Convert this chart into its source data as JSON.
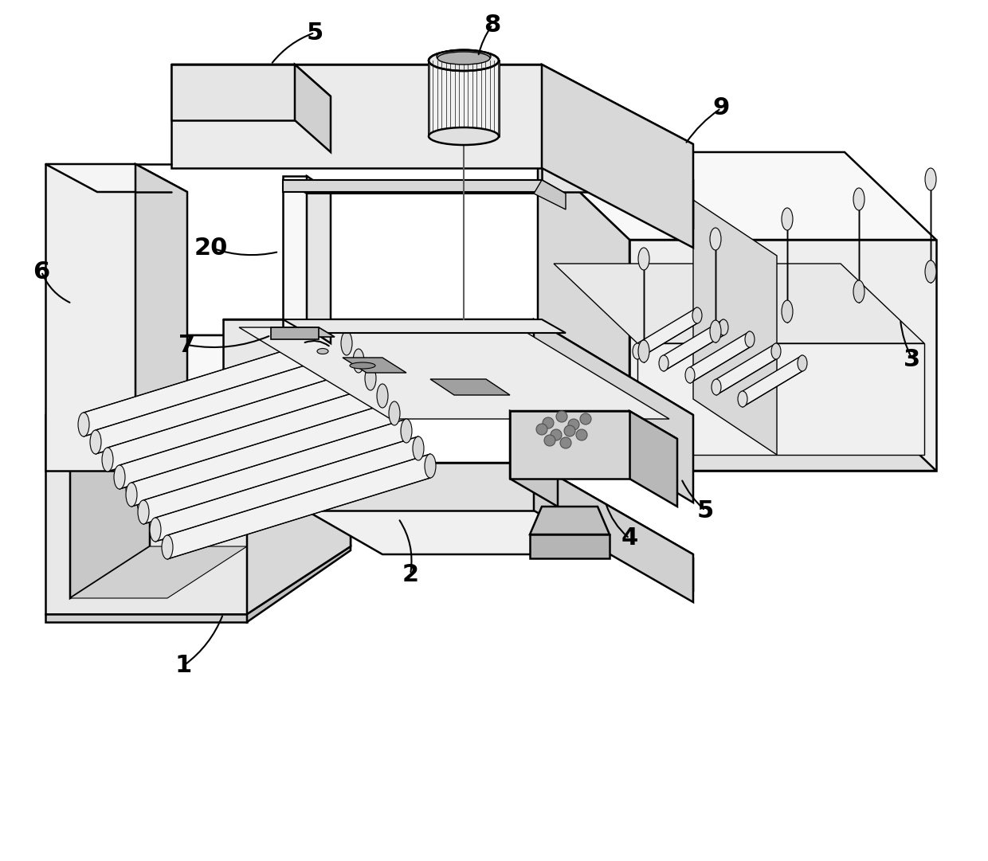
{
  "bg_color": "#ffffff",
  "lc": "#000000",
  "lw": 1.8,
  "fc_white": "#ffffff",
  "fc_light": "#f2f2f2",
  "fc_mid": "#e0e0e0",
  "fc_dark": "#c8c8c8",
  "fc_darker": "#b0b0b0",
  "figsize": [
    12.4,
    10.81
  ],
  "dpi": 100
}
